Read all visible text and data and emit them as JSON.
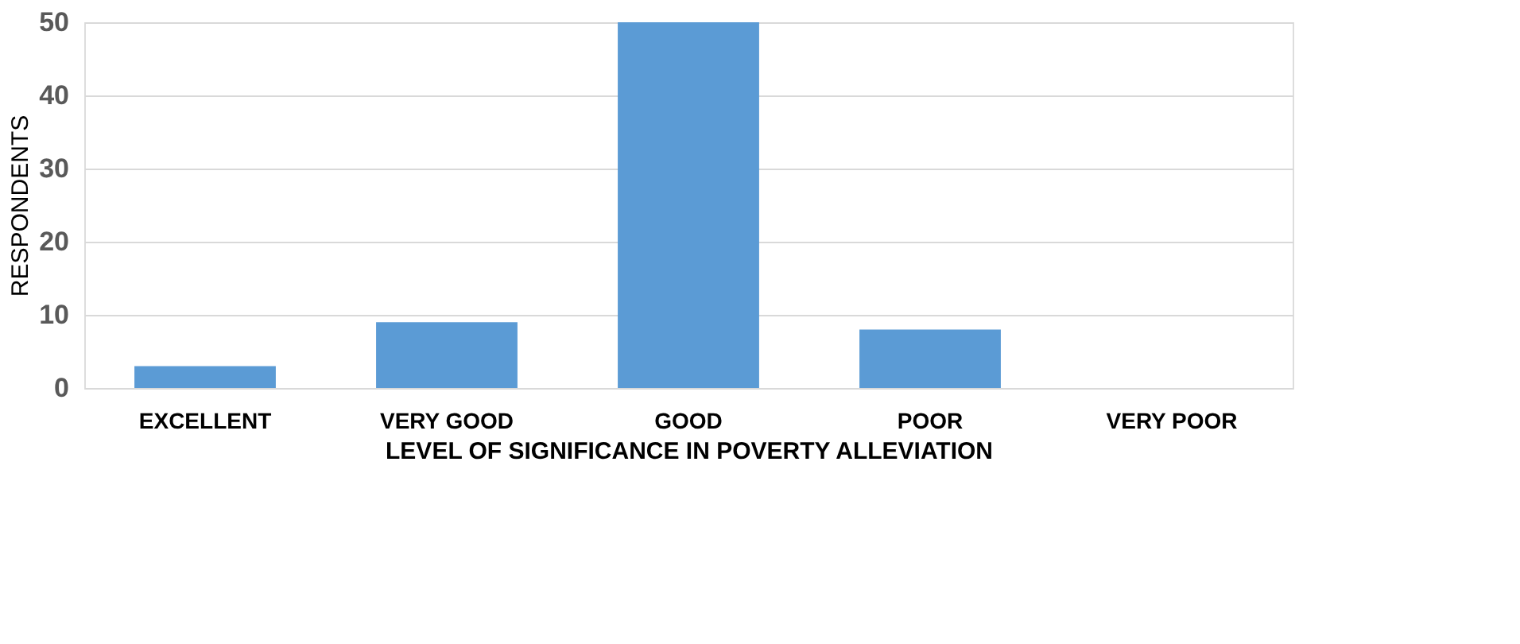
{
  "chart_data": {
    "type": "bar",
    "categories": [
      "EXCELLENT",
      "VERY GOOD",
      "GOOD",
      "POOR",
      "VERY POOR"
    ],
    "values": [
      3,
      9,
      50,
      8,
      0
    ],
    "color": "#5b9bd5",
    "xlabel": "LEVEL OF SIGNIFICANCE IN POVERTY ALLEVIATION",
    "ylabel": "RESPONDENTS",
    "ylim": [
      0,
      50
    ],
    "yticks": [
      0,
      10,
      20,
      30,
      40,
      50
    ],
    "grid": "y"
  }
}
